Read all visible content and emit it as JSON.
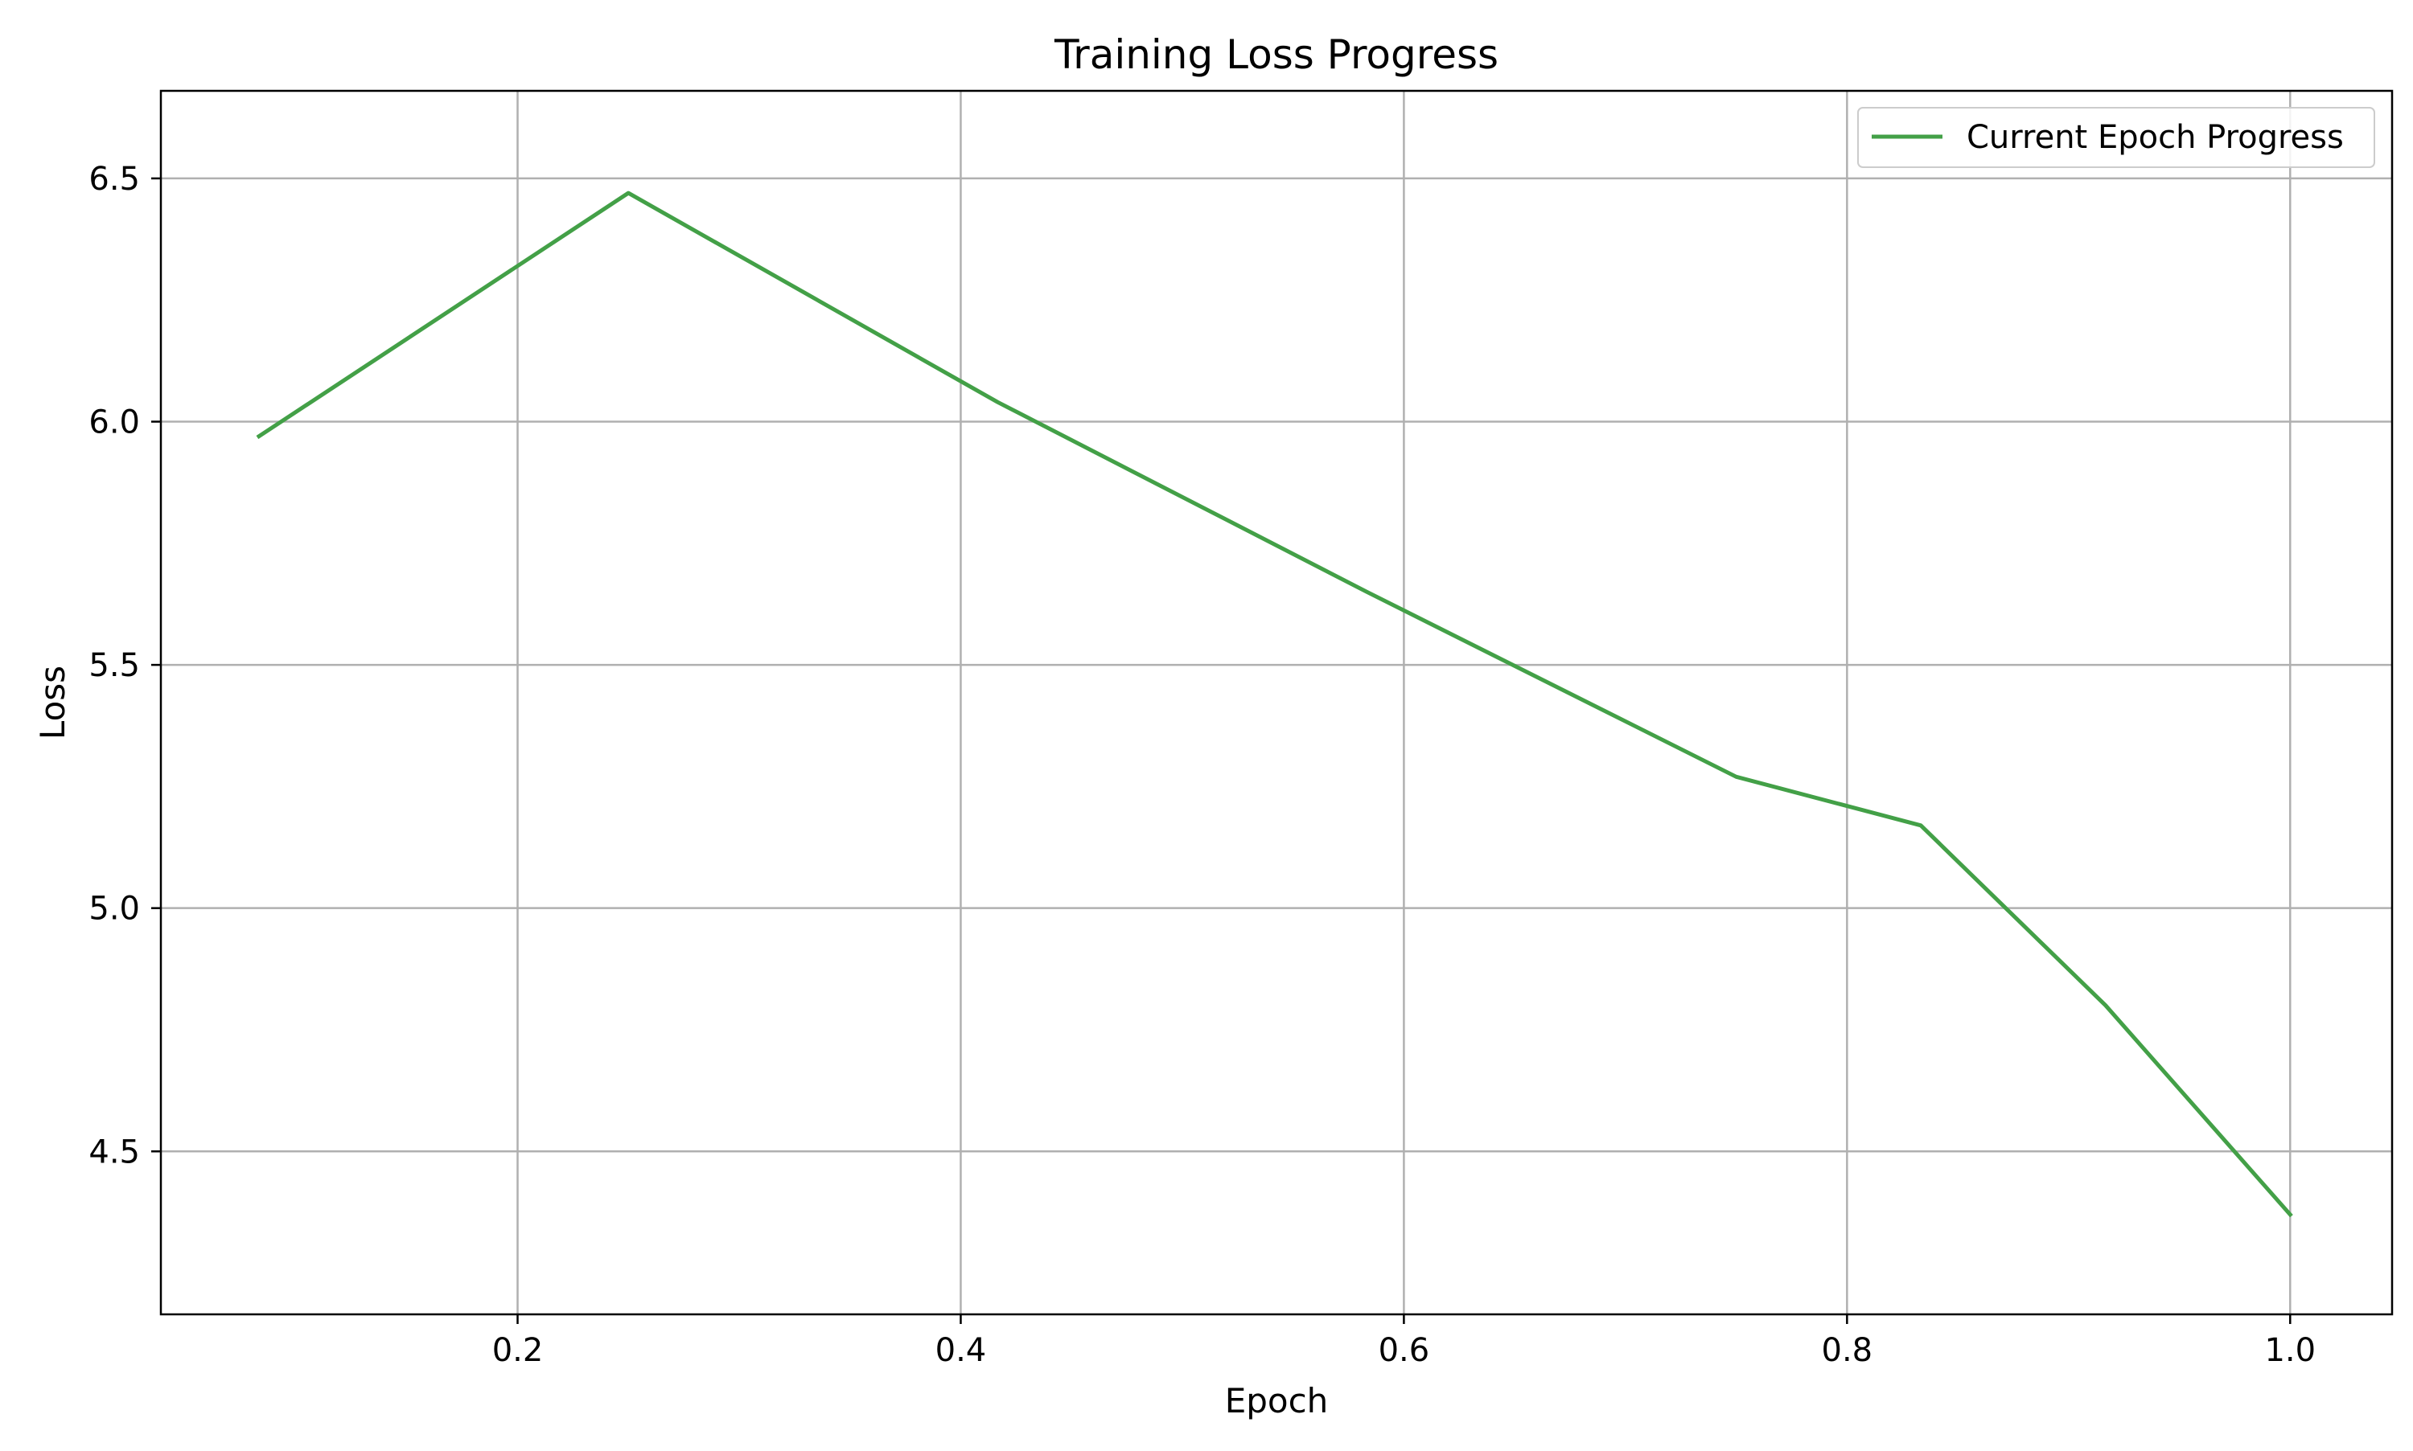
{
  "chart_data": {
    "type": "line",
    "title": "Training Loss Progress",
    "xlabel": "Epoch",
    "ylabel": "Loss",
    "xlim": [
      0.039,
      1.046
    ],
    "ylim": [
      4.165,
      6.68
    ],
    "x_ticks": [
      0.2,
      0.4,
      0.6,
      0.8,
      1.0
    ],
    "x_tick_labels": [
      "0.2",
      "0.4",
      "0.6",
      "0.8",
      "1.0"
    ],
    "y_ticks": [
      4.5,
      5.0,
      5.5,
      6.0,
      6.5
    ],
    "y_tick_labels": [
      "4.5",
      "5.0",
      "5.5",
      "6.0",
      "6.5"
    ],
    "grid": true,
    "legend_position": "top-right",
    "series": [
      {
        "name": "Current Epoch Progress",
        "color": "#43a047",
        "x": [
          0.0833,
          0.25,
          0.4167,
          0.5833,
          0.75,
          0.8333,
          0.9167,
          1.0
        ],
        "y": [
          5.97,
          6.47,
          6.04,
          5.65,
          5.27,
          5.17,
          4.8,
          4.37
        ]
      }
    ]
  }
}
